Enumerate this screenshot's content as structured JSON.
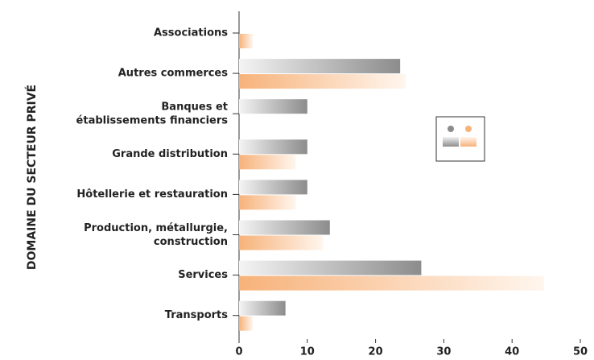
{
  "chart_data": {
    "type": "bar",
    "orientation": "horizontal",
    "ylabel": "DOMAINE DU SECTEUR PRIVÉ",
    "categories": [
      "Associations",
      "Autres commerces",
      "Banques et\nétablissements financiers",
      "Grande distribution",
      "Hôtellerie et restauration",
      "Production, métallurgie,\nconstruction",
      "Services",
      "Transports"
    ],
    "series": [
      {
        "color": "#8c8c8c",
        "values": [
          0,
          23.6,
          10,
          10,
          10,
          13.3,
          26.7,
          6.8
        ]
      },
      {
        "color": "#f7b27a",
        "values": [
          2,
          24.4,
          0,
          8.3,
          8.3,
          12.3,
          44.7,
          2
        ]
      }
    ],
    "xlim": [
      0,
      50
    ],
    "xticks": [
      0,
      10,
      20,
      30,
      40,
      50
    ],
    "grid": false
  }
}
